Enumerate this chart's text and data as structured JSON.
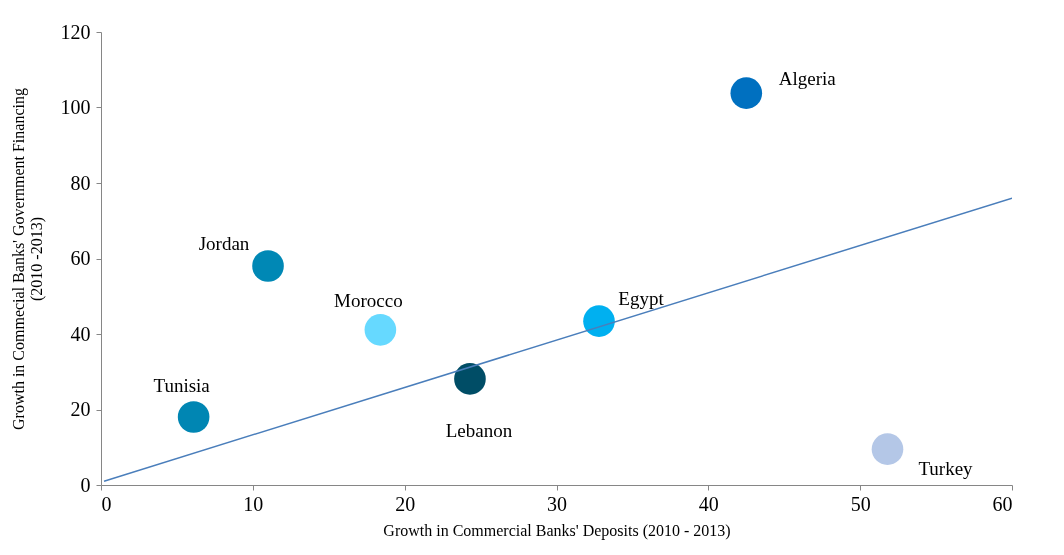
{
  "chart_data": {
    "type": "scatter",
    "xlabel": "Growth in Commercial Banks' Deposits (2010 - 2013)",
    "ylabel": [
      "Growth in Commecial Banks' Government Financing",
      "(2010 -2013)"
    ],
    "xlim": [
      0,
      60
    ],
    "xticks": [
      0,
      10,
      20,
      30,
      40,
      50,
      60
    ],
    "ylim": [
      0,
      120
    ],
    "yticks": [
      0,
      20,
      40,
      60,
      80,
      100,
      120
    ],
    "grid": false,
    "legend": false,
    "series": [
      {
        "type": "scatter",
        "marker": "circle",
        "x": [
          6.1,
          11.0,
          18.4,
          24.3,
          32.8,
          42.5,
          51.8
        ],
        "values": [
          18.0,
          58.0,
          41.1,
          28.1,
          43.4,
          103.8,
          9.5
        ],
        "colors": [
          "#0086b3",
          "#0088b5",
          "#66d9ff",
          "#004d66",
          "#00b0f0",
          "#0070c0",
          "#b4c7e7"
        ]
      },
      {
        "type": "line",
        "x": [
          0.2,
          60
        ],
        "values": [
          1.0,
          76.0
        ],
        "color": "#4a7ebb",
        "line_style": "solid"
      }
    ],
    "annotations": [
      {
        "text": "Tunisia",
        "x": 6.1,
        "y": 18.0
      },
      {
        "text": "Jordan",
        "x": 11.0,
        "y": 58.0
      },
      {
        "text": "Morocco",
        "x": 18.4,
        "y": 41.1
      },
      {
        "text": "Lebanon",
        "x": 24.3,
        "y": 28.1
      },
      {
        "text": "Egypt",
        "x": 32.8,
        "y": 43.4
      },
      {
        "text": "Algeria",
        "x": 42.5,
        "y": 103.8
      },
      {
        "text": "Turkey",
        "x": 51.8,
        "y": 9.5
      }
    ]
  }
}
